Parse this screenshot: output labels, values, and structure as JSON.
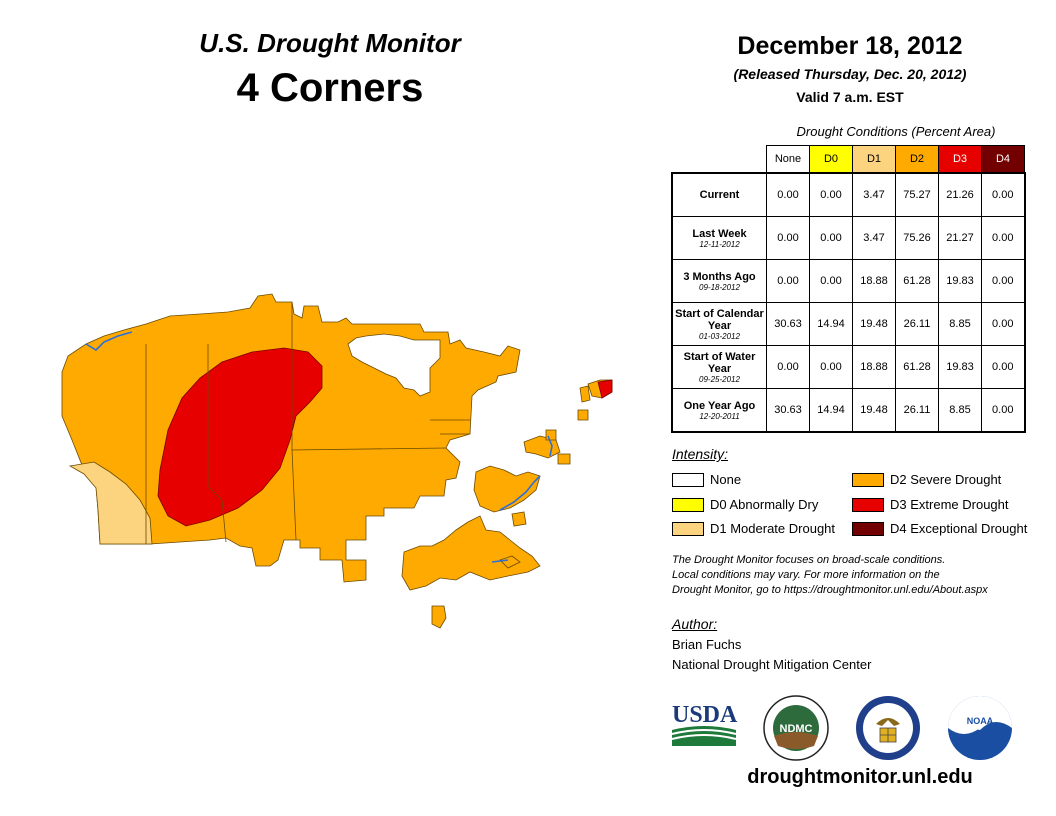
{
  "header": {
    "title": "U.S. Drought Monitor",
    "region": "4 Corners",
    "date": "December 18, 2012",
    "released": "(Released Thursday, Dec. 20, 2012)",
    "valid": "Valid 7 a.m. EST"
  },
  "table": {
    "caption": "Drought Conditions (Percent Area)",
    "columns": [
      "None",
      "D0",
      "D1",
      "D2",
      "D3",
      "D4"
    ],
    "rows": [
      {
        "label": "Current",
        "sub": "",
        "values": [
          "0.00",
          "0.00",
          "3.47",
          "75.27",
          "21.26",
          "0.00"
        ]
      },
      {
        "label": "Last Week",
        "sub": "12-11-2012",
        "values": [
          "0.00",
          "0.00",
          "3.47",
          "75.26",
          "21.27",
          "0.00"
        ]
      },
      {
        "label": "3 Months Ago",
        "sub": "09-18-2012",
        "values": [
          "0.00",
          "0.00",
          "18.88",
          "61.28",
          "19.83",
          "0.00"
        ]
      },
      {
        "label": "Start of Calendar Year",
        "sub": "01-03-2012",
        "values": [
          "30.63",
          "14.94",
          "19.48",
          "26.11",
          "8.85",
          "0.00"
        ]
      },
      {
        "label": "Start of Water Year",
        "sub": "09-25-2012",
        "values": [
          "0.00",
          "0.00",
          "18.88",
          "61.28",
          "19.83",
          "0.00"
        ]
      },
      {
        "label": "One Year Ago",
        "sub": "12-20-2011",
        "values": [
          "30.63",
          "14.94",
          "19.48",
          "26.11",
          "8.85",
          "0.00"
        ]
      }
    ]
  },
  "legend": {
    "title": "Intensity:",
    "items": [
      {
        "label": "None",
        "color": "#ffffff"
      },
      {
        "label": "D0 Abnormally Dry",
        "color": "#ffff00"
      },
      {
        "label": "D1 Moderate Drought",
        "color": "#fcd37f"
      },
      {
        "label": "D2 Severe Drought",
        "color": "#ffaa00"
      },
      {
        "label": "D3 Extreme Drought",
        "color": "#e60000"
      },
      {
        "label": "D4 Exceptional Drought",
        "color": "#730000"
      }
    ]
  },
  "note": {
    "line1": "The Drought Monitor focuses on broad-scale conditions.",
    "line2": "Local conditions may vary. For more information on the",
    "line3": "Drought Monitor, go to https://droughtmonitor.unl.edu/About.aspx"
  },
  "author": {
    "heading": "Author:",
    "name": "Brian Fuchs",
    "org": "National Drought Mitigation Center"
  },
  "logos": {
    "usda": "USDA",
    "ndmc": "NDMC",
    "noaa": "NOAA"
  },
  "footer": {
    "url": "droughtmonitor.unl.edu"
  },
  "colors": {
    "none": "#ffffff",
    "d0": "#ffff00",
    "d1": "#fcd37f",
    "d2": "#ffaa00",
    "d3": "#e60000",
    "d4": "#730000",
    "water": "#2a6fdb"
  }
}
